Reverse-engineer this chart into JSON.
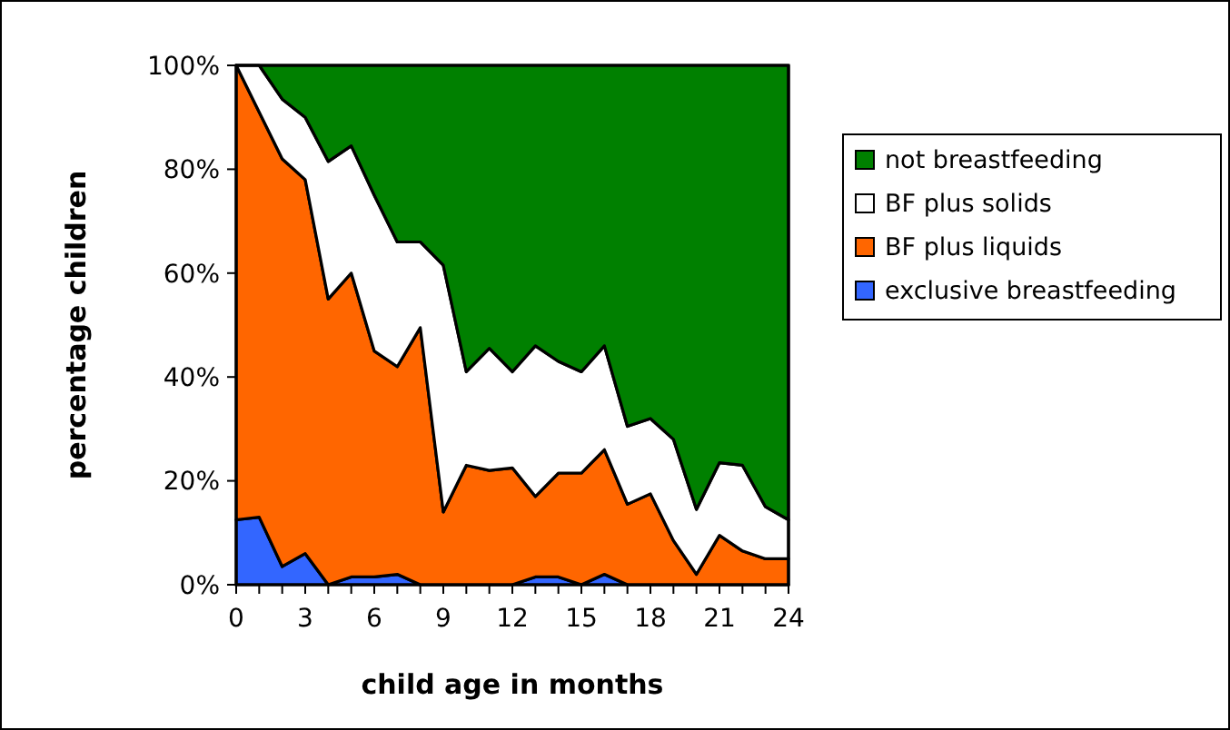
{
  "chart_data": {
    "type": "area",
    "stacked": true,
    "xlabel": "child age in months",
    "ylabel": "percentage children",
    "x": [
      0,
      1,
      2,
      3,
      4,
      5,
      6,
      7,
      8,
      9,
      10,
      11,
      12,
      13,
      14,
      15,
      16,
      17,
      18,
      19,
      20,
      21,
      22,
      23,
      24
    ],
    "xlim": [
      0,
      24
    ],
    "xticks": [
      0,
      {
        "value": 1,
        "label": null
      },
      {
        "value": 2,
        "label": null
      },
      3,
      {
        "value": 4,
        "label": null
      },
      {
        "value": 5,
        "label": null
      },
      6,
      {
        "value": 7,
        "label": null
      },
      {
        "value": 8,
        "label": null
      },
      9,
      {
        "value": 10,
        "label": null
      },
      {
        "value": 11,
        "label": null
      },
      12,
      {
        "value": 13,
        "label": null
      },
      {
        "value": 14,
        "label": null
      },
      15,
      {
        "value": 16,
        "label": null
      },
      {
        "value": 17,
        "label": null
      },
      18,
      {
        "value": 19,
        "label": null
      },
      {
        "value": 20,
        "label": null
      },
      21,
      {
        "value": 22,
        "label": null
      },
      {
        "value": 23,
        "label": null
      },
      24
    ],
    "ylim": [
      0,
      100
    ],
    "yticks": [
      {
        "value": 0,
        "label": "0%"
      },
      {
        "value": 20,
        "label": "20%"
      },
      {
        "value": 40,
        "label": "40%"
      },
      {
        "value": 60,
        "label": "60%"
      },
      {
        "value": 80,
        "label": "80%"
      },
      {
        "value": 100,
        "label": "100%"
      }
    ],
    "legend": "right",
    "series": [
      {
        "name": "exclusive breastfeeding",
        "color": "#3366ff",
        "values": [
          12.5,
          13,
          3.5,
          6,
          0,
          1.5,
          1.5,
          2,
          0,
          0,
          0,
          0,
          0,
          1.5,
          1.5,
          0,
          2,
          0,
          0,
          0,
          0,
          0,
          0,
          0,
          0
        ]
      },
      {
        "name": "BF plus liquids",
        "color": "#ff6600",
        "values": [
          87.5,
          78,
          78.5,
          72,
          55,
          58.5,
          43.5,
          40,
          49.5,
          14,
          23,
          22,
          22.5,
          15.5,
          20,
          21.5,
          24,
          15.5,
          17.5,
          8.5,
          2,
          9.5,
          6.5,
          5,
          5
        ]
      },
      {
        "name": "BF plus solids",
        "color": "#ffffff",
        "values": [
          0,
          9,
          11.5,
          12,
          26.5,
          24.5,
          30,
          24,
          16.5,
          47.5,
          18,
          23.5,
          18.5,
          29,
          21.5,
          19.5,
          20,
          15,
          14.5,
          19.5,
          12.5,
          14,
          16.5,
          10,
          7.5
        ]
      },
      {
        "name": "not breastfeeding",
        "color": "#008000",
        "values": [
          0,
          0,
          6.5,
          10,
          18.5,
          15.5,
          25,
          34,
          34,
          38.5,
          59,
          54.5,
          59,
          54,
          57,
          59,
          54,
          69.5,
          68,
          72,
          85.5,
          76.5,
          77,
          85,
          87.5
        ]
      }
    ]
  }
}
